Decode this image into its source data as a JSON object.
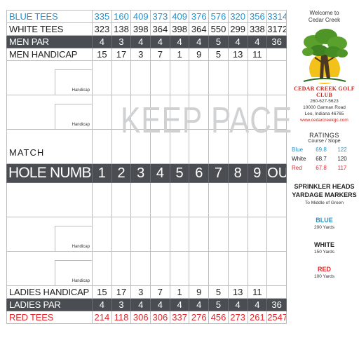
{
  "holes": [
    "1",
    "2",
    "3",
    "4",
    "5",
    "6",
    "7",
    "8",
    "9",
    "OUT"
  ],
  "rows": {
    "blue_tees": {
      "label": "BLUE TEES",
      "values": [
        "335",
        "160",
        "409",
        "373",
        "409",
        "376",
        "576",
        "320",
        "356",
        "3314"
      ]
    },
    "white_tees": {
      "label": "WHITE TEES",
      "values": [
        "323",
        "138",
        "398",
        "364",
        "398",
        "364",
        "550",
        "299",
        "338",
        "3172"
      ]
    },
    "men_par": {
      "label": "MEN PAR",
      "values": [
        "4",
        "3",
        "4",
        "4",
        "4",
        "4",
        "5",
        "4",
        "4",
        "36"
      ]
    },
    "men_handicap": {
      "label": "MEN HANDICAP",
      "values": [
        "15",
        "17",
        "3",
        "7",
        "1",
        "9",
        "5",
        "13",
        "11",
        ""
      ]
    },
    "hole_number": {
      "label": "HOLE NUMBER"
    },
    "ladies_handicap": {
      "label": "LADIES HANDICAP",
      "values": [
        "15",
        "17",
        "3",
        "7",
        "1",
        "9",
        "5",
        "13",
        "11",
        ""
      ]
    },
    "ladies_par": {
      "label": "LADIES PAR",
      "values": [
        "4",
        "3",
        "4",
        "4",
        "4",
        "4",
        "5",
        "4",
        "4",
        "36"
      ]
    },
    "red_tees": {
      "label": "RED TEES",
      "values": [
        "214",
        "118",
        "306",
        "306",
        "337",
        "276",
        "456",
        "273",
        "261",
        "2547"
      ]
    }
  },
  "handicap_label": "Handicap",
  "match_label": "MATCH",
  "watermark": "KEEP PACE",
  "sidebar": {
    "welcome": [
      "Welcome to",
      "Cedar Creek"
    ],
    "club_name": "CEDAR CREEK GOLF CLUB",
    "phone": "260-627-5623",
    "address": "10000 Garman Road",
    "city": "Leo, Indiana 46765",
    "website": "www.cedarcreekgc.com",
    "ratings_title": "RATINGS",
    "ratings_sub": "Course / Slope",
    "ratings": [
      {
        "name": "Blue",
        "course": "69.8",
        "slope": "122",
        "color": "#1f93cf"
      },
      {
        "name": "White",
        "course": "68.7",
        "slope": "120",
        "color": "#222222"
      },
      {
        "name": "Red",
        "course": "67.8",
        "slope": "117",
        "color": "#e0262c"
      }
    ],
    "sprinkler": [
      "SPRINKLER HEADS",
      "YARDAGE MARKERS"
    ],
    "to_middle": "To Middle of Green",
    "markers": [
      {
        "name": "BLUE",
        "yards": "200 Yards",
        "color": "#1f93cf"
      },
      {
        "name": "WHITE",
        "yards": "150 Yards",
        "color": "#222222"
      },
      {
        "name": "RED",
        "yards": "100 Yards",
        "color": "#e0262c"
      }
    ]
  },
  "colors": {
    "dark_row": "#4a4e52",
    "blue": "#1f93cf",
    "red": "#e0262c",
    "club_red": "#c3271f"
  }
}
